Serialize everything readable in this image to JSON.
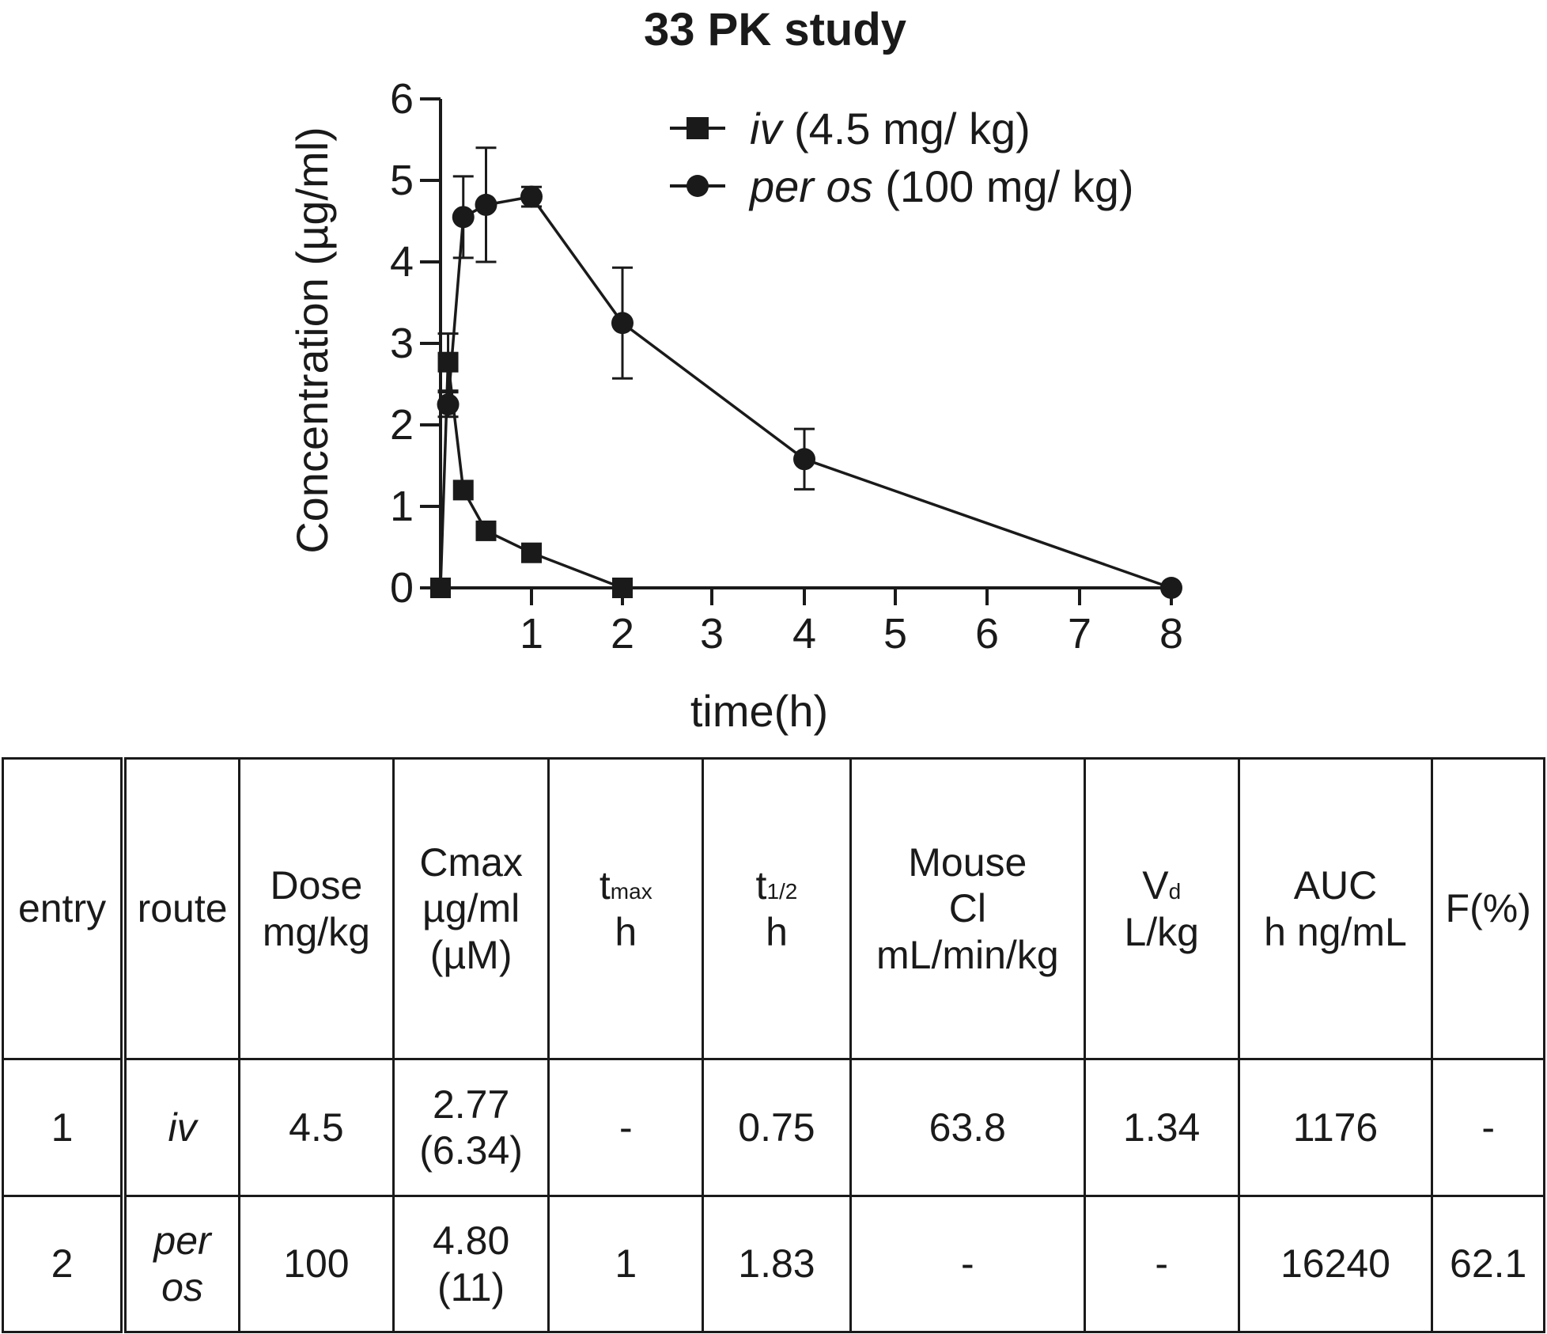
{
  "chart_data": {
    "type": "line",
    "title": "33 PK study",
    "xlabel": "time(h)",
    "ylabel": "Concentration (µg/ml)",
    "xlim": [
      0,
      8
    ],
    "ylim": [
      0,
      6
    ],
    "x_ticks": [
      1,
      2,
      3,
      4,
      5,
      6,
      7,
      8
    ],
    "y_ticks": [
      0,
      1,
      2,
      3,
      4,
      5,
      6
    ],
    "grid": false,
    "legend_position": "top-right",
    "series": [
      {
        "name_italic": "iv",
        "name_rest": " (4.5 mg/ kg)",
        "marker": "square",
        "x": [
          0,
          0.083,
          0.25,
          0.5,
          1,
          2
        ],
        "y": [
          0,
          2.77,
          1.2,
          0.7,
          0.43,
          0
        ],
        "err": [
          0,
          0.35,
          0,
          0,
          0,
          0
        ]
      },
      {
        "name_italic": "per os",
        "name_rest": " (100 mg/ kg)",
        "marker": "circle",
        "x": [
          0.083,
          0.25,
          0.5,
          1,
          2,
          4,
          8
        ],
        "y": [
          2.25,
          4.55,
          4.7,
          4.8,
          3.25,
          1.58,
          0
        ],
        "err": [
          0.15,
          0.5,
          0.7,
          0.12,
          0.68,
          0.37,
          0
        ]
      }
    ],
    "color": "#1a1a1a"
  },
  "table": {
    "headers": {
      "entry": "entry",
      "route": "route",
      "dose_1": "Dose",
      "dose_2": "mg/kg",
      "cmax_1": "Cmax",
      "cmax_2": "µg/ml",
      "cmax_3": "(µM)",
      "tmax_t": "t",
      "tmax_sub": "max",
      "tmax_unit": "h",
      "thalf_t": "t",
      "thalf_sub": "1/2",
      "thalf_unit": "h",
      "cl_1": "Mouse",
      "cl_2": "Cl",
      "cl_3": "mL/min/kg",
      "vd_v": "V",
      "vd_sub": "d",
      "vd_unit": "L/kg",
      "auc_1": "AUC",
      "auc_2": "h ng/mL",
      "f": "F(%)"
    },
    "rows": [
      {
        "entry": "1",
        "route_1": "iv",
        "route_2": "",
        "dose": "4.5",
        "cmax_1": "2.77",
        "cmax_2": "(6.34)",
        "tmax": "-",
        "thalf": "0.75",
        "cl": "63.8",
        "vd": "1.34",
        "auc": "1176",
        "f": "-"
      },
      {
        "entry": "2",
        "route_1": "per",
        "route_2": "os",
        "dose": "100",
        "cmax_1": "4.80",
        "cmax_2": "(11)",
        "tmax": "1",
        "thalf": "1.83",
        "cl": "-",
        "vd": "-",
        "auc": "16240",
        "f": "62.1"
      }
    ]
  }
}
